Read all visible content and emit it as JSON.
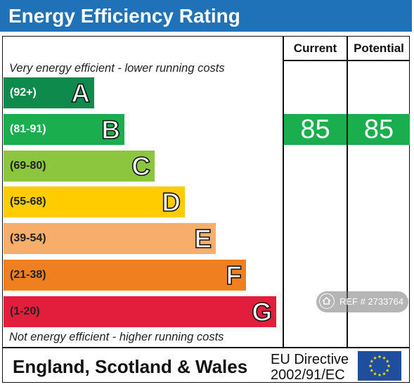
{
  "title": "Energy Efficiency Rating",
  "columns": {
    "current": "Current",
    "potential": "Potential"
  },
  "top_note": "Very energy efficient - lower running costs",
  "bottom_note": "Not energy efficient - higher running costs",
  "bands": [
    {
      "range": "(92+)",
      "letter": "A",
      "color": "#0e8a4c",
      "range_color": "#ffffff"
    },
    {
      "range": "(81-91)",
      "letter": "B",
      "color": "#1aae4f",
      "range_color": "#ffffff"
    },
    {
      "range": "(69-80)",
      "letter": "C",
      "color": "#8cc63f",
      "range_color": "#222222"
    },
    {
      "range": "(55-68)",
      "letter": "D",
      "color": "#ffcc00",
      "range_color": "#222222"
    },
    {
      "range": "(39-54)",
      "letter": "E",
      "color": "#f7ae6b",
      "range_color": "#222222"
    },
    {
      "range": "(21-38)",
      "letter": "F",
      "color": "#f0801f",
      "range_color": "#222222"
    },
    {
      "range": "(1-20)",
      "letter": "G",
      "color": "#e31d3c",
      "range_color": "#222222"
    }
  ],
  "current_score": "85",
  "potential_score": "85",
  "score_color": "#1aae4f",
  "footer": {
    "region": "England, Scotland & Wales",
    "directive_line1": "EU Directive",
    "directive_line2": "2002/91/EC",
    "flag_icon": "eu-flag-icon"
  },
  "watermark": {
    "icon": "home-icon",
    "text": "REF # 2733764"
  }
}
